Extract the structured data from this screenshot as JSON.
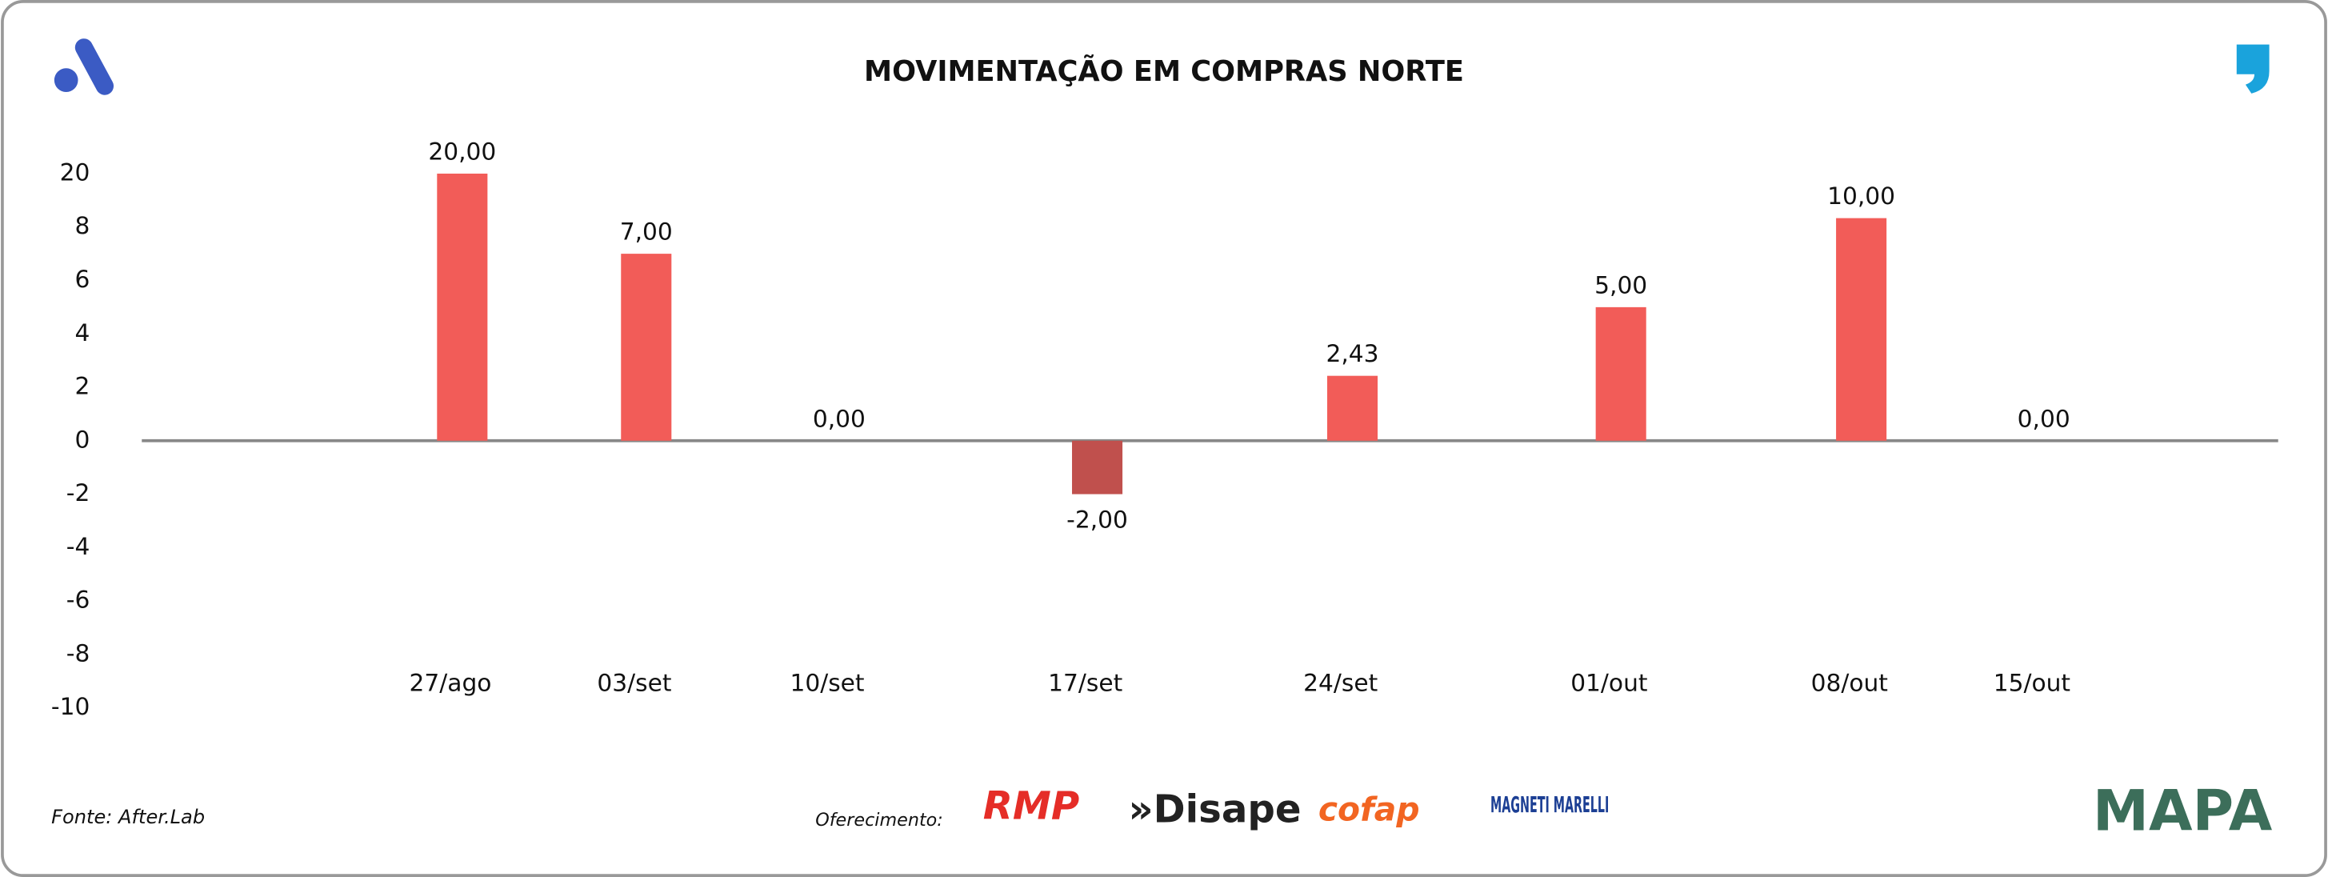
{
  "chart_data": {
    "type": "bar",
    "title": "MOVIMENTAÇÃO EM COMPRAS NORTE",
    "categories": [
      "27/ago",
      "03/set",
      "10/set",
      "17/set",
      "24/set",
      "01/out",
      "08/out",
      "15/out"
    ],
    "values": [
      20,
      7,
      0,
      -2,
      2.43,
      5,
      10,
      0
    ],
    "value_labels": [
      "20,00",
      "7,00",
      "0,00",
      "-2,00",
      "2,43",
      "5,00",
      "10,00",
      "0,00"
    ],
    "color": "#f25c58",
    "negative_color": "#c0504d",
    "ylim": [
      -10,
      20
    ],
    "yticks": [
      -10,
      -8,
      -6,
      -4,
      -2,
      0,
      2,
      4,
      6,
      8,
      20
    ],
    "grid": false
  },
  "footer": {
    "source": "Fonte: After.Lab",
    "sponsor_label": "Oferecimento:",
    "sponsors": [
      "RMP",
      "»Disape",
      "cofap",
      "MAGNETI MARELLI"
    ],
    "brand": "MAPA"
  }
}
